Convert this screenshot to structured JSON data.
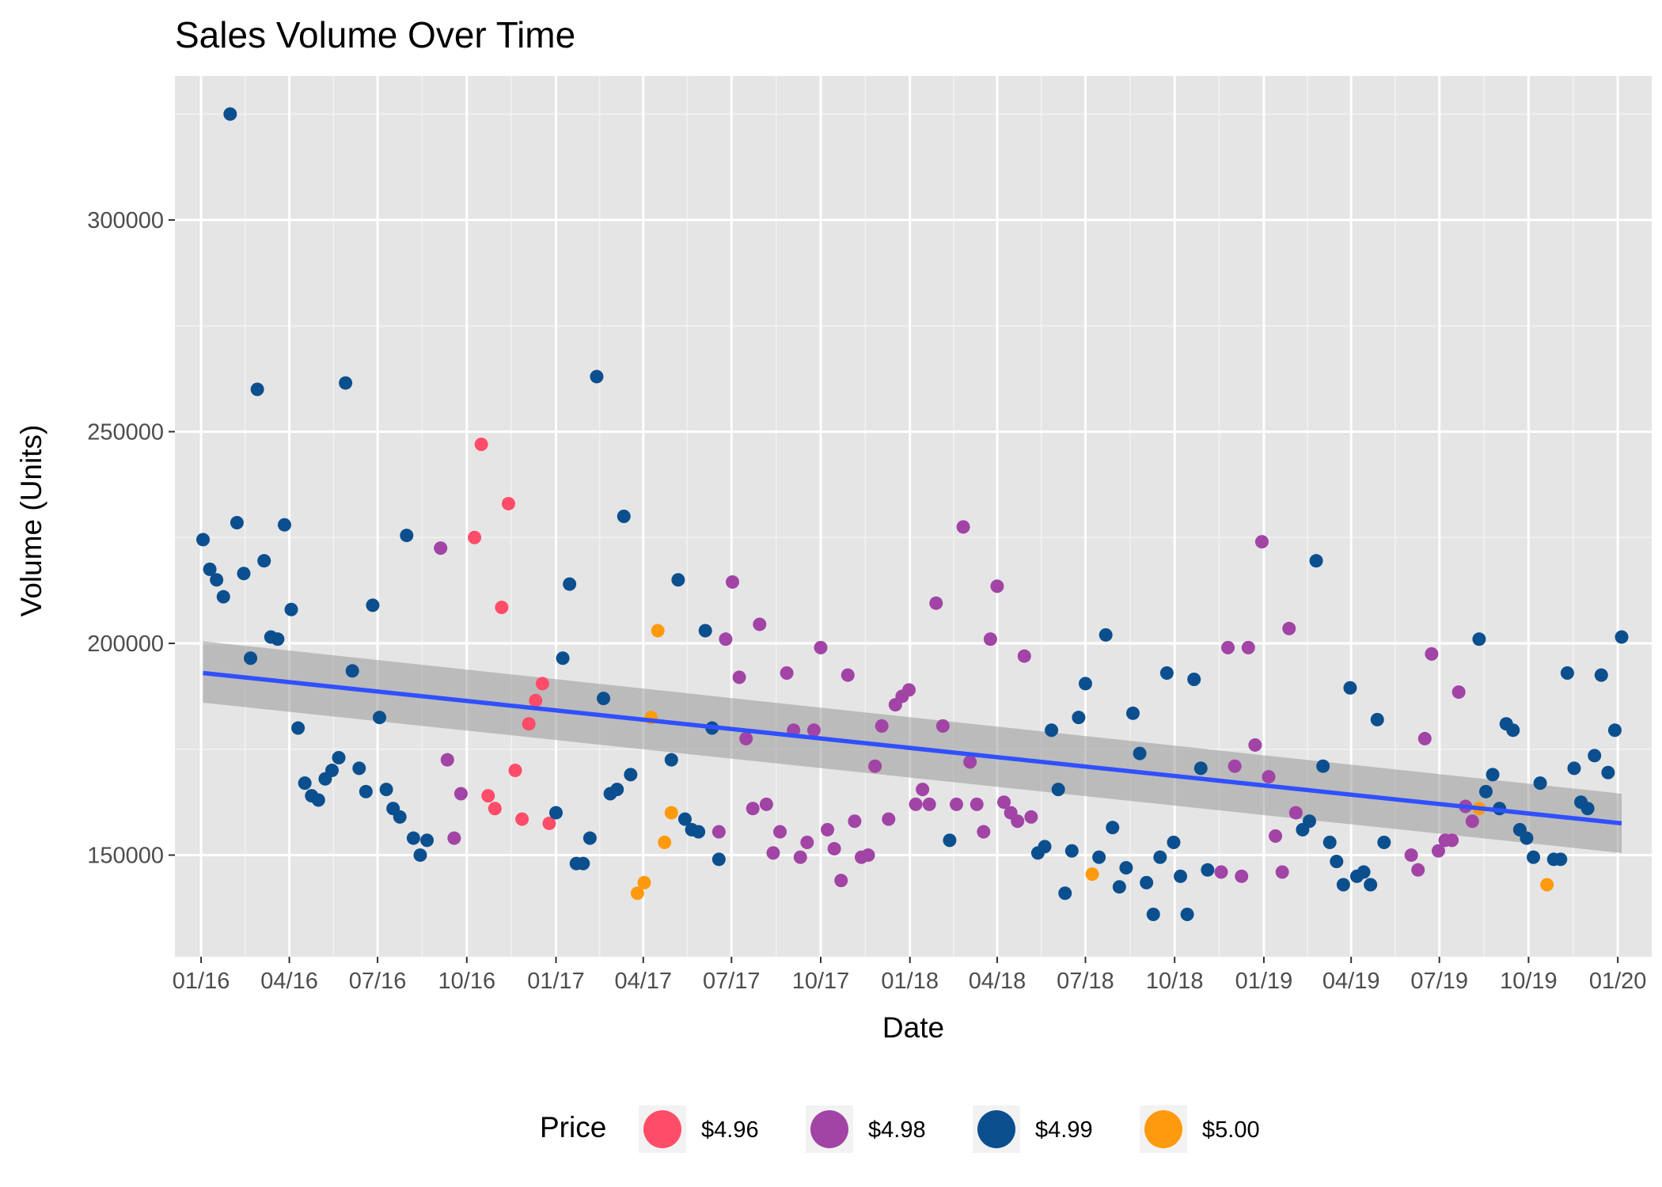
{
  "chart_data": {
    "type": "scatter",
    "title": "Sales Volume Over Time",
    "xlabel": "Date",
    "ylabel": "Volume (Units)",
    "x_ticks": [
      "01/16",
      "04/16",
      "07/16",
      "10/16",
      "01/17",
      "04/17",
      "07/17",
      "10/17",
      "01/18",
      "04/18",
      "07/18",
      "10/18",
      "01/19",
      "04/19",
      "07/19",
      "10/19",
      "01/20"
    ],
    "y_ticks": [
      150000,
      200000,
      250000,
      300000
    ],
    "ylim": [
      126000,
      334000
    ],
    "xlim": [
      "2015-12-05",
      "2020-02-05"
    ],
    "grid": true,
    "legend": {
      "title": "Price",
      "position": "bottom"
    },
    "series": [
      {
        "name": "$4.96",
        "color": "#ff4c69",
        "points": [
          [
            "2016-10-09",
            225000
          ],
          [
            "2016-10-16",
            247000
          ],
          [
            "2016-10-23",
            164000
          ],
          [
            "2016-10-30",
            161000
          ],
          [
            "2016-11-06",
            208500
          ],
          [
            "2016-11-13",
            233000
          ],
          [
            "2016-11-20",
            170000
          ],
          [
            "2016-11-27",
            158500
          ],
          [
            "2016-12-04",
            181000
          ],
          [
            "2016-12-11",
            186500
          ],
          [
            "2016-12-18",
            190500
          ],
          [
            "2016-12-25",
            157500
          ]
        ]
      },
      {
        "name": "$4.98",
        "color": "#a144a5",
        "points": [
          [
            "2016-09-04",
            222500
          ],
          [
            "2016-09-11",
            172500
          ],
          [
            "2016-09-18",
            154000
          ],
          [
            "2016-09-25",
            164500
          ],
          [
            "2017-06-18",
            155500
          ],
          [
            "2017-06-25",
            201000
          ],
          [
            "2017-07-02",
            214500
          ],
          [
            "2017-07-09",
            192000
          ],
          [
            "2017-07-16",
            177500
          ],
          [
            "2017-07-23",
            161000
          ],
          [
            "2017-07-30",
            204500
          ],
          [
            "2017-08-06",
            162000
          ],
          [
            "2017-08-13",
            150500
          ],
          [
            "2017-08-20",
            155500
          ],
          [
            "2017-08-27",
            193000
          ],
          [
            "2017-09-03",
            179500
          ],
          [
            "2017-09-10",
            149500
          ],
          [
            "2017-09-17",
            153000
          ],
          [
            "2017-09-24",
            179500
          ],
          [
            "2017-10-01",
            199000
          ],
          [
            "2017-10-08",
            156000
          ],
          [
            "2017-10-15",
            151500
          ],
          [
            "2017-10-22",
            144000
          ],
          [
            "2017-10-29",
            192500
          ],
          [
            "2017-11-05",
            158000
          ],
          [
            "2017-11-12",
            149500
          ],
          [
            "2017-11-19",
            150000
          ],
          [
            "2017-11-26",
            171000
          ],
          [
            "2017-12-03",
            180500
          ],
          [
            "2017-12-10",
            158500
          ],
          [
            "2017-12-17",
            185500
          ],
          [
            "2017-12-24",
            187500
          ],
          [
            "2017-12-31",
            189000
          ],
          [
            "2018-01-07",
            162000
          ],
          [
            "2018-01-14",
            165500
          ],
          [
            "2018-01-21",
            162000
          ],
          [
            "2018-01-28",
            209500
          ],
          [
            "2018-02-04",
            180500
          ],
          [
            "2018-02-18",
            162000
          ],
          [
            "2018-02-25",
            227500
          ],
          [
            "2018-03-04",
            172000
          ],
          [
            "2018-03-11",
            162000
          ],
          [
            "2018-03-18",
            155500
          ],
          [
            "2018-03-25",
            201000
          ],
          [
            "2018-04-01",
            213500
          ],
          [
            "2018-04-08",
            162500
          ],
          [
            "2018-04-15",
            160000
          ],
          [
            "2018-04-22",
            158000
          ],
          [
            "2018-04-29",
            197000
          ],
          [
            "2018-05-06",
            159000
          ],
          [
            "2018-11-18",
            146000
          ],
          [
            "2018-11-25",
            199000
          ],
          [
            "2018-12-02",
            171000
          ],
          [
            "2018-12-09",
            145000
          ],
          [
            "2018-12-16",
            199000
          ],
          [
            "2018-12-23",
            176000
          ],
          [
            "2018-12-30",
            224000
          ],
          [
            "2019-01-06",
            168500
          ],
          [
            "2019-01-13",
            154500
          ],
          [
            "2019-01-20",
            146000
          ],
          [
            "2019-01-27",
            203500
          ],
          [
            "2019-02-03",
            160000
          ],
          [
            "2019-06-02",
            150000
          ],
          [
            "2019-06-09",
            146500
          ],
          [
            "2019-06-16",
            177500
          ],
          [
            "2019-06-23",
            197500
          ],
          [
            "2019-06-30",
            151000
          ],
          [
            "2019-07-07",
            153500
          ],
          [
            "2019-07-14",
            153500
          ],
          [
            "2019-07-21",
            188500
          ],
          [
            "2019-07-28",
            161500
          ],
          [
            "2019-08-04",
            158000
          ]
        ]
      },
      {
        "name": "$4.99",
        "color": "#0b4f8f",
        "points": [
          [
            "2016-01-03",
            224500
          ],
          [
            "2016-01-10",
            217500
          ],
          [
            "2016-01-17",
            215000
          ],
          [
            "2016-01-24",
            211000
          ],
          [
            "2016-01-31",
            325000
          ],
          [
            "2016-02-07",
            228500
          ],
          [
            "2016-02-14",
            216500
          ],
          [
            "2016-02-21",
            196500
          ],
          [
            "2016-02-28",
            260000
          ],
          [
            "2016-03-06",
            219500
          ],
          [
            "2016-03-13",
            201500
          ],
          [
            "2016-03-20",
            201000
          ],
          [
            "2016-03-27",
            228000
          ],
          [
            "2016-04-03",
            208000
          ],
          [
            "2016-04-10",
            180000
          ],
          [
            "2016-04-17",
            167000
          ],
          [
            "2016-04-24",
            164000
          ],
          [
            "2016-05-01",
            163000
          ],
          [
            "2016-05-08",
            168000
          ],
          [
            "2016-05-15",
            170000
          ],
          [
            "2016-05-22",
            173000
          ],
          [
            "2016-05-29",
            261500
          ],
          [
            "2016-06-05",
            193500
          ],
          [
            "2016-06-12",
            170500
          ],
          [
            "2016-06-19",
            165000
          ],
          [
            "2016-06-26",
            209000
          ],
          [
            "2016-07-03",
            182500
          ],
          [
            "2016-07-10",
            165500
          ],
          [
            "2016-07-17",
            161000
          ],
          [
            "2016-07-24",
            159000
          ],
          [
            "2016-07-31",
            225500
          ],
          [
            "2016-08-07",
            154000
          ],
          [
            "2016-08-14",
            150000
          ],
          [
            "2016-08-21",
            153500
          ],
          [
            "2017-01-01",
            160000
          ],
          [
            "2017-01-08",
            196500
          ],
          [
            "2017-01-15",
            214000
          ],
          [
            "2017-01-22",
            148000
          ],
          [
            "2017-01-29",
            148000
          ],
          [
            "2017-02-05",
            154000
          ],
          [
            "2017-02-12",
            263000
          ],
          [
            "2017-02-19",
            187000
          ],
          [
            "2017-02-26",
            164500
          ],
          [
            "2017-03-05",
            165500
          ],
          [
            "2017-03-12",
            230000
          ],
          [
            "2017-03-19",
            169000
          ],
          [
            "2017-04-30",
            172500
          ],
          [
            "2017-05-07",
            215000
          ],
          [
            "2017-05-14",
            158500
          ],
          [
            "2017-05-21",
            156000
          ],
          [
            "2017-05-28",
            155500
          ],
          [
            "2017-06-04",
            203000
          ],
          [
            "2017-06-11",
            180000
          ],
          [
            "2017-06-18",
            149000
          ],
          [
            "2018-02-11",
            153500
          ],
          [
            "2018-05-13",
            150500
          ],
          [
            "2018-05-20",
            152000
          ],
          [
            "2018-05-27",
            179500
          ],
          [
            "2018-06-03",
            165500
          ],
          [
            "2018-06-10",
            141000
          ],
          [
            "2018-06-17",
            151000
          ],
          [
            "2018-06-24",
            182500
          ],
          [
            "2018-07-01",
            190500
          ],
          [
            "2018-07-15",
            149500
          ],
          [
            "2018-07-22",
            202000
          ],
          [
            "2018-07-29",
            156500
          ],
          [
            "2018-08-05",
            142500
          ],
          [
            "2018-08-12",
            147000
          ],
          [
            "2018-08-19",
            183500
          ],
          [
            "2018-08-26",
            174000
          ],
          [
            "2018-09-02",
            143500
          ],
          [
            "2018-09-09",
            136000
          ],
          [
            "2018-09-16",
            149500
          ],
          [
            "2018-09-23",
            193000
          ],
          [
            "2018-09-30",
            153000
          ],
          [
            "2018-10-07",
            145000
          ],
          [
            "2018-10-14",
            136000
          ],
          [
            "2018-10-21",
            191500
          ],
          [
            "2018-10-28",
            170500
          ],
          [
            "2018-11-04",
            146500
          ],
          [
            "2019-02-10",
            156000
          ],
          [
            "2019-02-17",
            158000
          ],
          [
            "2019-02-24",
            219500
          ],
          [
            "2019-03-03",
            171000
          ],
          [
            "2019-03-10",
            153000
          ],
          [
            "2019-03-17",
            148500
          ],
          [
            "2019-03-24",
            143000
          ],
          [
            "2019-03-31",
            189500
          ],
          [
            "2019-04-07",
            145000
          ],
          [
            "2019-04-14",
            146000
          ],
          [
            "2019-04-21",
            143000
          ],
          [
            "2019-04-28",
            182000
          ],
          [
            "2019-05-05",
            153000
          ],
          [
            "2019-08-11",
            201000
          ],
          [
            "2019-08-18",
            165000
          ],
          [
            "2019-08-25",
            169000
          ],
          [
            "2019-09-01",
            161000
          ],
          [
            "2019-09-08",
            181000
          ],
          [
            "2019-09-15",
            179500
          ],
          [
            "2019-09-22",
            156000
          ],
          [
            "2019-09-29",
            154000
          ],
          [
            "2019-10-06",
            149500
          ],
          [
            "2019-10-13",
            167000
          ],
          [
            "2019-10-27",
            149000
          ],
          [
            "2019-11-03",
            149000
          ],
          [
            "2019-11-10",
            193000
          ],
          [
            "2019-11-17",
            170500
          ],
          [
            "2019-11-24",
            162500
          ],
          [
            "2019-12-01",
            161000
          ],
          [
            "2019-12-08",
            173500
          ],
          [
            "2019-12-15",
            192500
          ],
          [
            "2019-12-22",
            169500
          ],
          [
            "2019-12-29",
            179500
          ],
          [
            "2020-01-05",
            201500
          ]
        ]
      },
      {
        "name": "$5.00",
        "color": "#ff9a0e",
        "points": [
          [
            "2017-03-26",
            141000
          ],
          [
            "2017-04-02",
            143500
          ],
          [
            "2017-04-09",
            182500
          ],
          [
            "2017-04-16",
            203000
          ],
          [
            "2017-04-23",
            153000
          ],
          [
            "2017-04-30",
            160000
          ],
          [
            "2018-07-08",
            145500
          ],
          [
            "2019-08-11",
            161000
          ],
          [
            "2019-10-20",
            143000
          ]
        ]
      }
    ],
    "trend_line": {
      "color": "#3050ff",
      "x": [
        "2016-01-03",
        "2020-01-05"
      ],
      "y": [
        193000,
        157500
      ],
      "ci_lower": [
        186000,
        150500
      ],
      "ci_upper": [
        200500,
        164500
      ]
    }
  }
}
